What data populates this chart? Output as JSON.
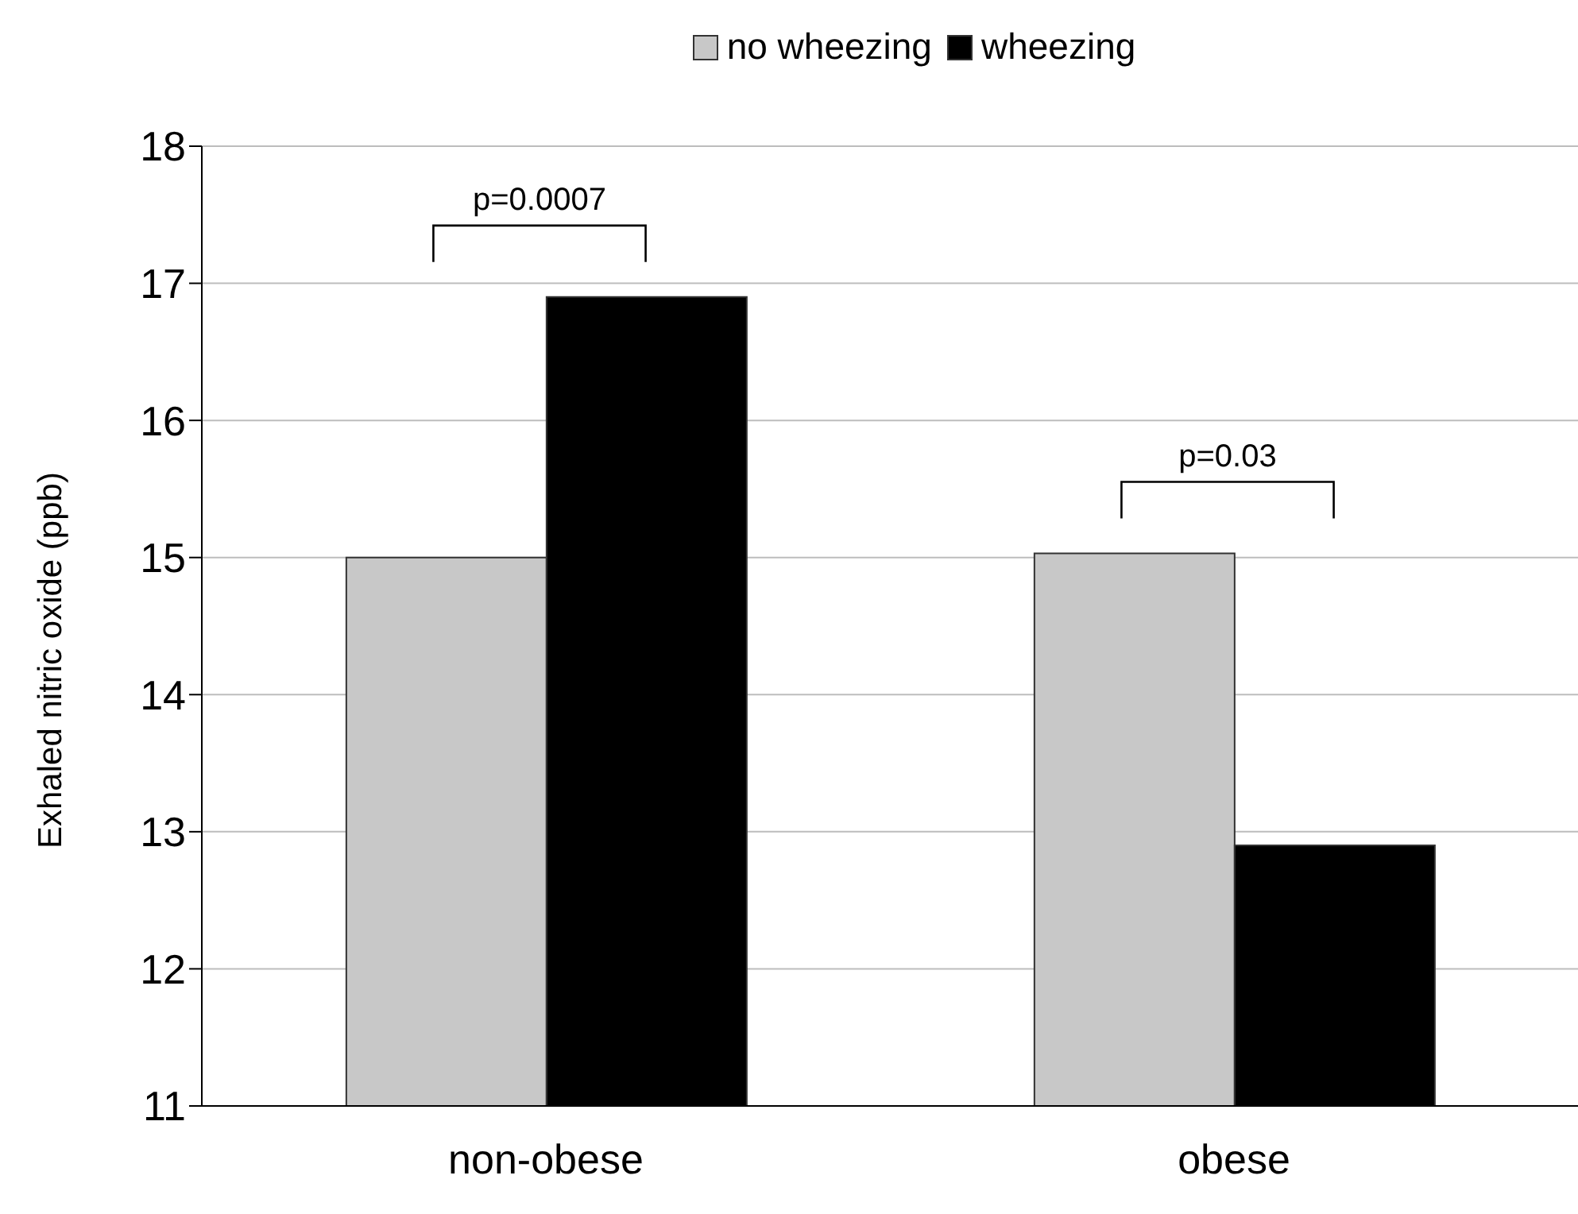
{
  "chart_data": {
    "type": "bar",
    "ylabel": "Exhaled nitric oxide (ppb)",
    "categories": [
      "non-obese",
      "obese"
    ],
    "series": [
      {
        "name": "no wheezing",
        "color": "#c8c8c8",
        "values": [
          15.0,
          15.03
        ]
      },
      {
        "name": "wheezing",
        "color": "#000000",
        "values": [
          16.9,
          12.9
        ]
      }
    ],
    "ylim": [
      11,
      18
    ],
    "yticks": [
      11,
      12,
      13,
      14,
      15,
      16,
      17,
      18
    ],
    "grid": "y",
    "legend": "top",
    "annotations": [
      "p=0.0007",
      "p=0.03"
    ]
  }
}
